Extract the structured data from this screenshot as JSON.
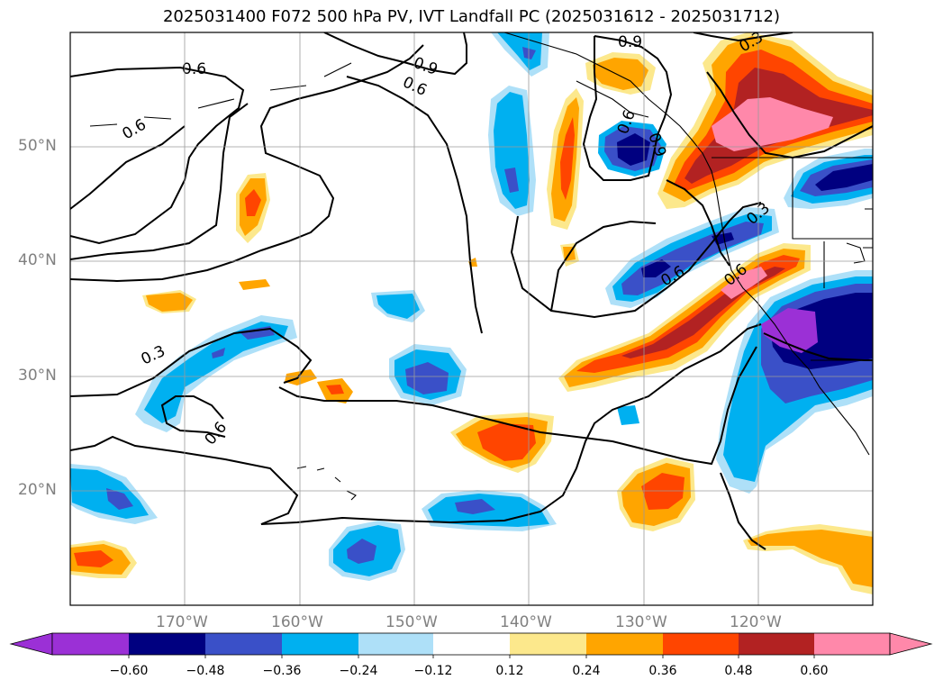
{
  "title": "2025031400 F072 500 hPa PV, IVT Landfall PC (2025031612 - 2025031712)",
  "lat_labels": [
    "50°N",
    "40°N",
    "30°N",
    "20°N"
  ],
  "lon_labels": [
    "170°W",
    "160°W",
    "150°W",
    "140°W",
    "130°W",
    "120°W"
  ],
  "contour_labels": [
    "0.6",
    "0.9",
    "0.6",
    "0.9",
    "0.9",
    "0.3",
    "0.6",
    "0.3",
    "0.6",
    "0.3",
    "0.6",
    "0.6",
    "0.6"
  ],
  "colorbar": {
    "ticks": [
      "−0.60",
      "−0.48",
      "−0.36",
      "−0.24",
      "−0.12",
      "0.12",
      "0.24",
      "0.36",
      "0.48",
      "0.60"
    ],
    "colors": [
      "#9b30d6",
      "#000080",
      "#3a50c8",
      "#00b0f0",
      "#aee0f8",
      "#ffffff",
      "#fce88c",
      "#ffa500",
      "#ff4500",
      "#b22222",
      "#ff88aa",
      "#ff88aa"
    ]
  }
}
